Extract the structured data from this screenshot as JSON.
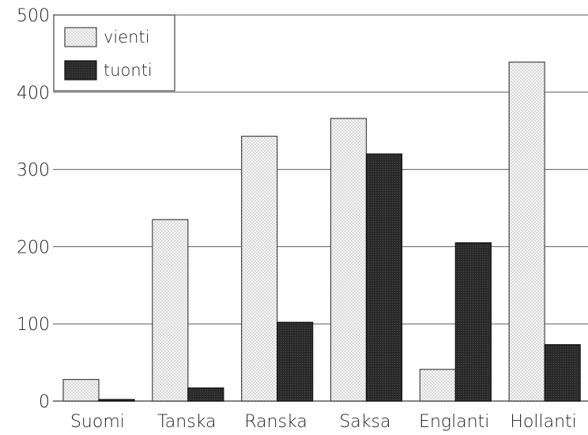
{
  "chart_data": {
    "type": "bar",
    "title": "",
    "xlabel": "",
    "ylabel": "",
    "categories": [
      "Suomi",
      "Tanska",
      "Ranska",
      "Saksa",
      "Englanti",
      "Hollanti"
    ],
    "series": [
      {
        "name": "vienti",
        "values": [
          28,
          235,
          343,
          366,
          41,
          439
        ],
        "color": "#e9e9e9",
        "pattern": "dotted"
      },
      {
        "name": "tuonti",
        "values": [
          2,
          17,
          102,
          320,
          205,
          73
        ],
        "color": "#2e2e2e",
        "pattern": "dense-dotted"
      }
    ],
    "ylim": [
      0,
      500
    ],
    "yticks": [
      0,
      100,
      200,
      300,
      400,
      500
    ],
    "ytick_labels": [
      "0",
      "100",
      "200",
      "300",
      "400",
      "500"
    ],
    "grid": "horizontal",
    "legend_position": "top-left"
  }
}
